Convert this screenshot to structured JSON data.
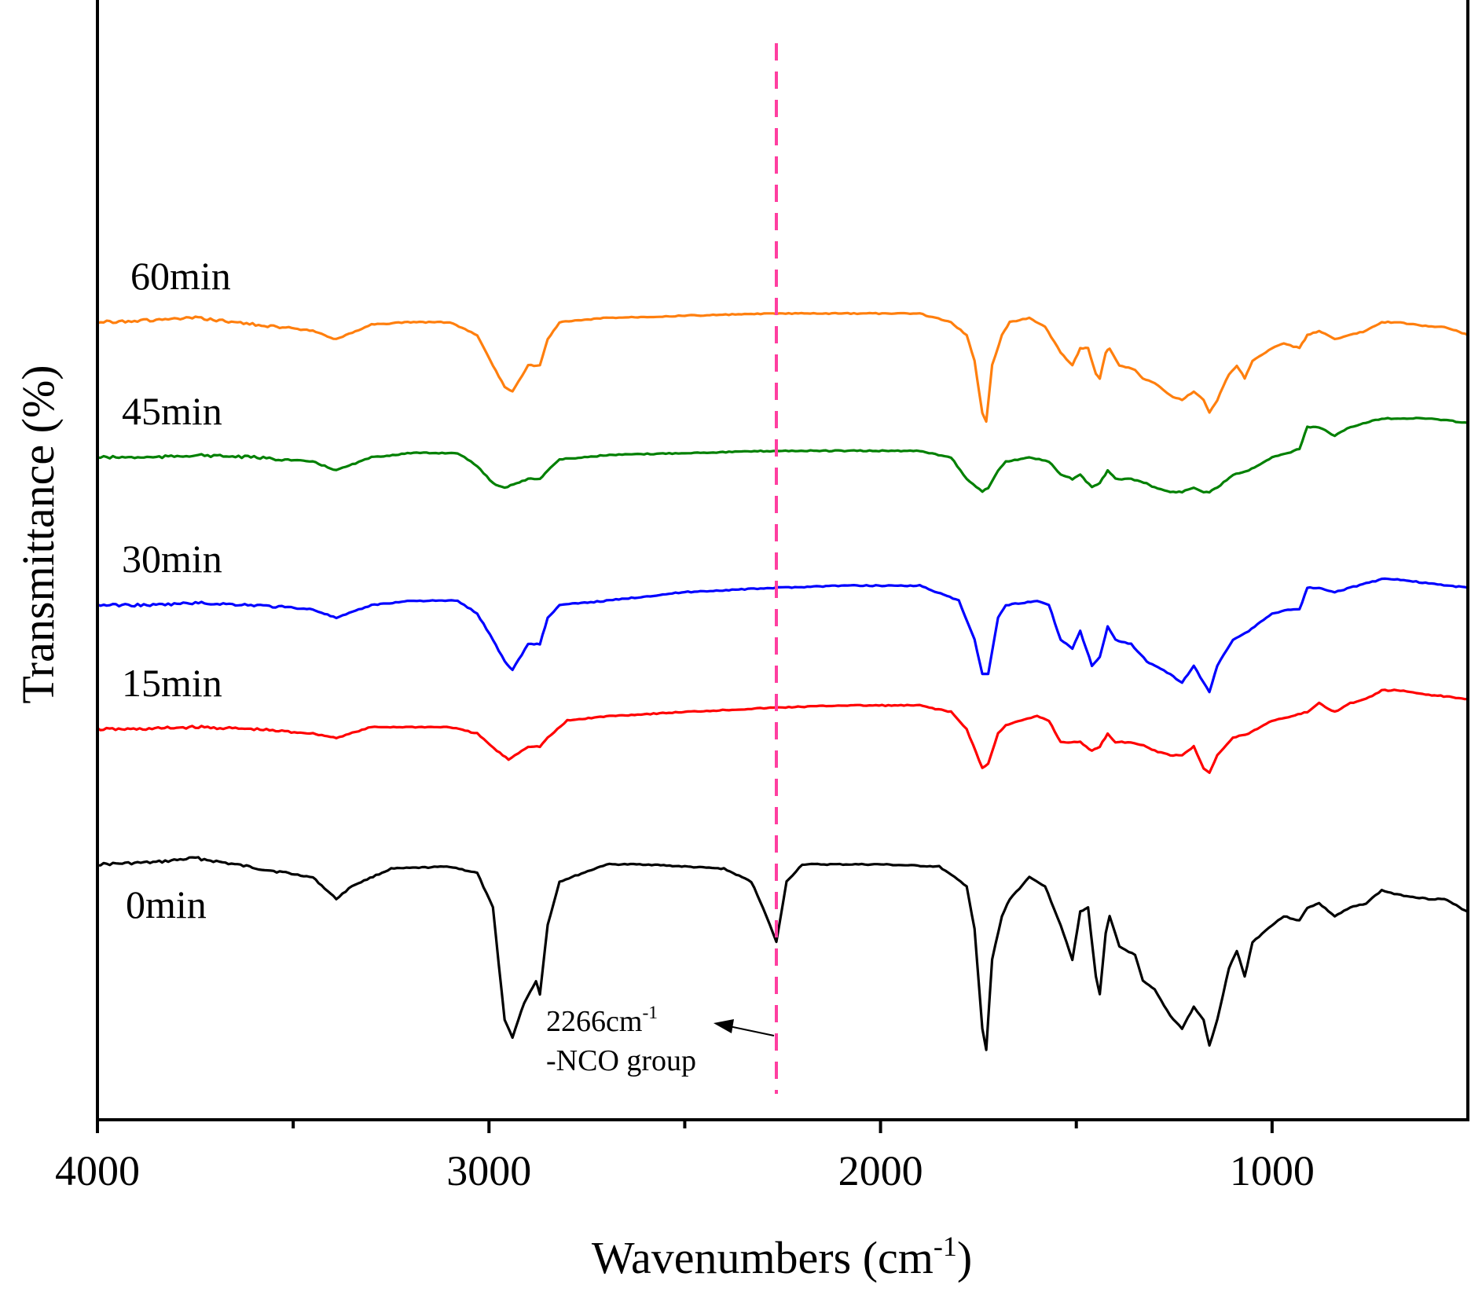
{
  "chart_data": {
    "type": "line",
    "title": "",
    "xlabel": "Wavenumbers (cm",
    "xlabel_sup": "-1",
    "xlabel_tail": ")",
    "ylabel": "Transmittance (%)",
    "xlim": [
      4000,
      500
    ],
    "x_ticks": [
      4000,
      3000,
      2000,
      1000
    ],
    "x_minor_ticks": [
      3500,
      2500,
      1500
    ],
    "y_ticks_shown": false,
    "series": [
      {
        "name": "0min",
        "color": "#000000",
        "offset": 0,
        "points": [
          [
            4000,
            0
          ],
          [
            3850,
            0.5
          ],
          [
            3750,
            1.5
          ],
          [
            3650,
            0
          ],
          [
            3550,
            -1.5
          ],
          [
            3450,
            -3
          ],
          [
            3390,
            -8
          ],
          [
            3350,
            -5
          ],
          [
            3250,
            -1
          ],
          [
            3100,
            -0.5
          ],
          [
            3030,
            -2
          ],
          [
            2990,
            -10
          ],
          [
            2960,
            -36
          ],
          [
            2940,
            -40
          ],
          [
            2910,
            -32
          ],
          [
            2880,
            -27
          ],
          [
            2870,
            -30
          ],
          [
            2850,
            -14
          ],
          [
            2820,
            -4
          ],
          [
            2700,
            0
          ],
          [
            2600,
            0
          ],
          [
            2500,
            -0.5
          ],
          [
            2400,
            -1
          ],
          [
            2330,
            -4
          ],
          [
            2300,
            -10
          ],
          [
            2266,
            -18
          ],
          [
            2240,
            -4
          ],
          [
            2200,
            0
          ],
          [
            2000,
            0
          ],
          [
            1850,
            -0.5
          ],
          [
            1780,
            -5
          ],
          [
            1760,
            -15
          ],
          [
            1740,
            -38
          ],
          [
            1730,
            -43
          ],
          [
            1715,
            -22
          ],
          [
            1690,
            -12
          ],
          [
            1670,
            -8
          ],
          [
            1620,
            -3
          ],
          [
            1580,
            -5
          ],
          [
            1540,
            -14
          ],
          [
            1510,
            -22
          ],
          [
            1490,
            -11
          ],
          [
            1470,
            -10
          ],
          [
            1450,
            -26
          ],
          [
            1440,
            -30
          ],
          [
            1425,
            -16
          ],
          [
            1415,
            -12
          ],
          [
            1390,
            -19
          ],
          [
            1350,
            -21
          ],
          [
            1330,
            -27
          ],
          [
            1300,
            -29
          ],
          [
            1260,
            -35
          ],
          [
            1230,
            -38
          ],
          [
            1200,
            -33
          ],
          [
            1175,
            -36
          ],
          [
            1160,
            -42
          ],
          [
            1140,
            -36
          ],
          [
            1110,
            -24
          ],
          [
            1090,
            -20
          ],
          [
            1070,
            -26
          ],
          [
            1050,
            -18
          ],
          [
            1000,
            -14
          ],
          [
            970,
            -12
          ],
          [
            930,
            -13
          ],
          [
            910,
            -10
          ],
          [
            880,
            -9
          ],
          [
            840,
            -12
          ],
          [
            800,
            -10
          ],
          [
            760,
            -9
          ],
          [
            720,
            -6
          ],
          [
            680,
            -7
          ],
          [
            600,
            -8
          ],
          [
            560,
            -8
          ],
          [
            500,
            -11
          ]
        ]
      },
      {
        "name": "15min",
        "color": "#ff0000",
        "offset": 172,
        "points": [
          [
            4000,
            0
          ],
          [
            3900,
            0
          ],
          [
            3750,
            0.5
          ],
          [
            3600,
            0
          ],
          [
            3450,
            -1
          ],
          [
            3390,
            -2
          ],
          [
            3300,
            0.5
          ],
          [
            3100,
            0.5
          ],
          [
            3030,
            -1
          ],
          [
            2980,
            -5
          ],
          [
            2950,
            -7
          ],
          [
            2900,
            -4
          ],
          [
            2870,
            -4
          ],
          [
            2850,
            -2
          ],
          [
            2800,
            2
          ],
          [
            2700,
            3
          ],
          [
            2500,
            4
          ],
          [
            2266,
            5
          ],
          [
            2100,
            5.5
          ],
          [
            1900,
            5.5
          ],
          [
            1820,
            4
          ],
          [
            1780,
            0
          ],
          [
            1740,
            -9
          ],
          [
            1725,
            -8
          ],
          [
            1700,
            -1
          ],
          [
            1680,
            1
          ],
          [
            1600,
            3
          ],
          [
            1570,
            2
          ],
          [
            1540,
            -3
          ],
          [
            1520,
            -3
          ],
          [
            1490,
            -3
          ],
          [
            1460,
            -5
          ],
          [
            1440,
            -4
          ],
          [
            1420,
            -1
          ],
          [
            1400,
            -3
          ],
          [
            1360,
            -3
          ],
          [
            1320,
            -4
          ],
          [
            1300,
            -5
          ],
          [
            1260,
            -6
          ],
          [
            1230,
            -6
          ],
          [
            1200,
            -4
          ],
          [
            1175,
            -9
          ],
          [
            1160,
            -10
          ],
          [
            1140,
            -6
          ],
          [
            1100,
            -2
          ],
          [
            1060,
            -1
          ],
          [
            1000,
            2
          ],
          [
            950,
            3
          ],
          [
            910,
            4
          ],
          [
            880,
            6
          ],
          [
            840,
            4
          ],
          [
            800,
            6
          ],
          [
            760,
            7
          ],
          [
            720,
            9
          ],
          [
            680,
            9
          ],
          [
            600,
            8
          ],
          [
            500,
            7
          ]
        ]
      },
      {
        "name": "30min",
        "color": "#0000ff",
        "offset": 330,
        "points": [
          [
            4000,
            0
          ],
          [
            3850,
            0
          ],
          [
            3750,
            0.5
          ],
          [
            3600,
            0
          ],
          [
            3450,
            -1
          ],
          [
            3390,
            -3
          ],
          [
            3300,
            0
          ],
          [
            3200,
            1
          ],
          [
            3080,
            1
          ],
          [
            3030,
            -2
          ],
          [
            2990,
            -8
          ],
          [
            2960,
            -13
          ],
          [
            2940,
            -15
          ],
          [
            2900,
            -9
          ],
          [
            2870,
            -9
          ],
          [
            2850,
            -3
          ],
          [
            2820,
            0
          ],
          [
            2700,
            1
          ],
          [
            2500,
            3
          ],
          [
            2266,
            4
          ],
          [
            2100,
            4.5
          ],
          [
            1900,
            4.5
          ],
          [
            1800,
            1
          ],
          [
            1760,
            -8
          ],
          [
            1740,
            -16
          ],
          [
            1725,
            -16
          ],
          [
            1700,
            -3
          ],
          [
            1680,
            0
          ],
          [
            1600,
            1
          ],
          [
            1570,
            0
          ],
          [
            1540,
            -8
          ],
          [
            1510,
            -10
          ],
          [
            1490,
            -6
          ],
          [
            1460,
            -14
          ],
          [
            1440,
            -12
          ],
          [
            1420,
            -5
          ],
          [
            1400,
            -8
          ],
          [
            1360,
            -9
          ],
          [
            1320,
            -13
          ],
          [
            1300,
            -14
          ],
          [
            1260,
            -16
          ],
          [
            1230,
            -18
          ],
          [
            1200,
            -14
          ],
          [
            1175,
            -18
          ],
          [
            1160,
            -20
          ],
          [
            1140,
            -14
          ],
          [
            1100,
            -8
          ],
          [
            1060,
            -6
          ],
          [
            1000,
            -2
          ],
          [
            960,
            -1
          ],
          [
            930,
            -1
          ],
          [
            910,
            4
          ],
          [
            880,
            4
          ],
          [
            840,
            3
          ],
          [
            800,
            4
          ],
          [
            760,
            5
          ],
          [
            720,
            6
          ],
          [
            680,
            6
          ],
          [
            600,
            5
          ],
          [
            500,
            4
          ]
        ]
      },
      {
        "name": "45min",
        "color": "#008000",
        "offset": 518,
        "points": [
          [
            4000,
            0
          ],
          [
            3850,
            0
          ],
          [
            3750,
            0.5
          ],
          [
            3600,
            0
          ],
          [
            3450,
            -1
          ],
          [
            3390,
            -3
          ],
          [
            3300,
            0
          ],
          [
            3200,
            1
          ],
          [
            3080,
            1
          ],
          [
            3030,
            -2
          ],
          [
            2990,
            -6
          ],
          [
            2960,
            -7
          ],
          [
            2900,
            -5
          ],
          [
            2870,
            -5
          ],
          [
            2850,
            -3
          ],
          [
            2820,
            -0.5
          ],
          [
            2700,
            0.5
          ],
          [
            2500,
            1
          ],
          [
            2266,
            1.5
          ],
          [
            2100,
            1.5
          ],
          [
            1900,
            1.5
          ],
          [
            1820,
            0
          ],
          [
            1780,
            -5
          ],
          [
            1740,
            -8
          ],
          [
            1725,
            -7
          ],
          [
            1700,
            -3
          ],
          [
            1680,
            -1
          ],
          [
            1620,
            0
          ],
          [
            1570,
            -1
          ],
          [
            1540,
            -4
          ],
          [
            1510,
            -5
          ],
          [
            1490,
            -4
          ],
          [
            1460,
            -7
          ],
          [
            1440,
            -6
          ],
          [
            1420,
            -3
          ],
          [
            1400,
            -5
          ],
          [
            1360,
            -5
          ],
          [
            1320,
            -6
          ],
          [
            1300,
            -7
          ],
          [
            1260,
            -8
          ],
          [
            1230,
            -8
          ],
          [
            1200,
            -7
          ],
          [
            1175,
            -8
          ],
          [
            1160,
            -8
          ],
          [
            1140,
            -7
          ],
          [
            1100,
            -4
          ],
          [
            1060,
            -3
          ],
          [
            1000,
            0
          ],
          [
            960,
            1
          ],
          [
            930,
            2
          ],
          [
            910,
            7
          ],
          [
            880,
            7
          ],
          [
            840,
            5
          ],
          [
            800,
            7
          ],
          [
            760,
            8
          ],
          [
            720,
            9
          ],
          [
            680,
            9
          ],
          [
            600,
            9
          ],
          [
            500,
            8
          ]
        ]
      },
      {
        "name": "60min",
        "color": "#ff7f0e",
        "offset": 690,
        "points": [
          [
            4000,
            0
          ],
          [
            3850,
            0.5
          ],
          [
            3750,
            1
          ],
          [
            3650,
            0
          ],
          [
            3550,
            -1
          ],
          [
            3450,
            -2
          ],
          [
            3390,
            -4
          ],
          [
            3300,
            -0.5
          ],
          [
            3200,
            0
          ],
          [
            3100,
            0
          ],
          [
            3030,
            -3
          ],
          [
            2990,
            -10
          ],
          [
            2960,
            -15
          ],
          [
            2940,
            -16
          ],
          [
            2900,
            -10
          ],
          [
            2870,
            -10
          ],
          [
            2850,
            -4
          ],
          [
            2820,
            0
          ],
          [
            2700,
            1
          ],
          [
            2500,
            1.5
          ],
          [
            2266,
            2
          ],
          [
            2100,
            2
          ],
          [
            1900,
            2
          ],
          [
            1820,
            0
          ],
          [
            1780,
            -3
          ],
          [
            1760,
            -9
          ],
          [
            1740,
            -21
          ],
          [
            1730,
            -23
          ],
          [
            1715,
            -10
          ],
          [
            1690,
            -3
          ],
          [
            1670,
            0
          ],
          [
            1620,
            1
          ],
          [
            1580,
            -1
          ],
          [
            1540,
            -7
          ],
          [
            1510,
            -10
          ],
          [
            1490,
            -6
          ],
          [
            1470,
            -6
          ],
          [
            1450,
            -12
          ],
          [
            1440,
            -13
          ],
          [
            1425,
            -7
          ],
          [
            1415,
            -6
          ],
          [
            1390,
            -10
          ],
          [
            1350,
            -11
          ],
          [
            1330,
            -13
          ],
          [
            1300,
            -14
          ],
          [
            1260,
            -17
          ],
          [
            1230,
            -18
          ],
          [
            1200,
            -16
          ],
          [
            1175,
            -18
          ],
          [
            1160,
            -21
          ],
          [
            1140,
            -18
          ],
          [
            1110,
            -12
          ],
          [
            1090,
            -10
          ],
          [
            1070,
            -13
          ],
          [
            1050,
            -9
          ],
          [
            1000,
            -6
          ],
          [
            970,
            -5
          ],
          [
            930,
            -6
          ],
          [
            910,
            -3
          ],
          [
            880,
            -2
          ],
          [
            840,
            -4
          ],
          [
            800,
            -3
          ],
          [
            760,
            -2
          ],
          [
            720,
            0
          ],
          [
            680,
            0
          ],
          [
            600,
            -1
          ],
          [
            560,
            -1
          ],
          [
            500,
            -3
          ]
        ]
      }
    ],
    "annotations": {
      "vline_x": 2266,
      "vline_color": "#ff3fa0",
      "text_line1": "2266cm",
      "text_line1_sup": "-1",
      "text_line2": "-NCO group"
    }
  }
}
